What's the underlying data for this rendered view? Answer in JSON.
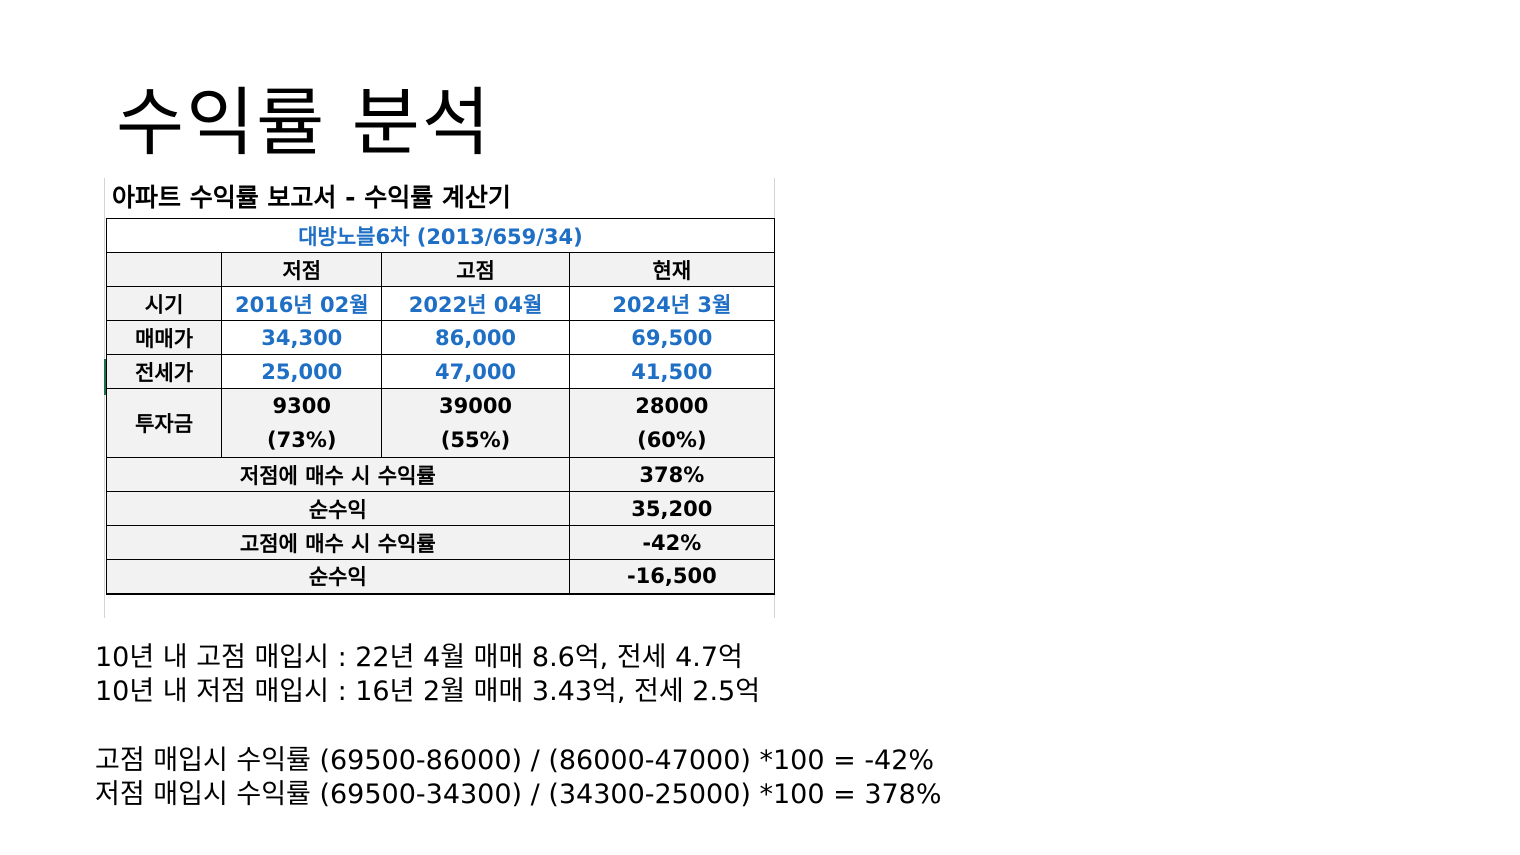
{
  "slide": {
    "title": "수익률 분석"
  },
  "sheet": {
    "title": "아파트 수익률 보고서 - 수익률 계산기",
    "apartment": "대방노블6차 (2013/659/34)",
    "headers": {
      "low": "저점",
      "high": "고점",
      "current": "현재"
    },
    "rows": {
      "period": {
        "label": "시기",
        "low": "2016년 02월",
        "high": "2022년 04월",
        "current": "2024년 3월"
      },
      "sale_price": {
        "label": "매매가",
        "low": "34,300",
        "high": "86,000",
        "current": "69,500"
      },
      "jeonse_price": {
        "label": "전세가",
        "low": "25,000",
        "high": "47,000",
        "current": "41,500"
      },
      "investment": {
        "label": "투자금",
        "low": "9300",
        "low_ratio": "(73%)",
        "high": "39000",
        "high_ratio": "(55%)",
        "current": "28000",
        "current_ratio": "(60%)"
      }
    },
    "summary": {
      "low_buy_return_label": "저점에 매수 시 수익률",
      "low_buy_return": "378%",
      "low_net_profit_label": "순수익",
      "low_net_profit": "35,200",
      "high_buy_return_label": "고점에 매수 시 수익률",
      "high_buy_return": "-42%",
      "high_net_profit_label": "순수익",
      "high_net_profit": "-16,500"
    }
  },
  "notes": {
    "line1": "10년 내 고점 매입시 : 22년 4월 매매 8.6억, 전세 4.7억",
    "line2": "10년 내 저점 매입시 : 16년 2월 매매 3.43억, 전세 2.5억",
    "line3": "고점 매입시 수익률 (69500-86000) / (86000-47000) *100  =  -42%",
    "line4": "저점 매입시 수익률 (69500-34300) / (34300-25000) *100  =  378%"
  },
  "colors": {
    "blue_text": "#1f6fc5",
    "header_fill": "#f2f2f2",
    "border": "#000000"
  }
}
